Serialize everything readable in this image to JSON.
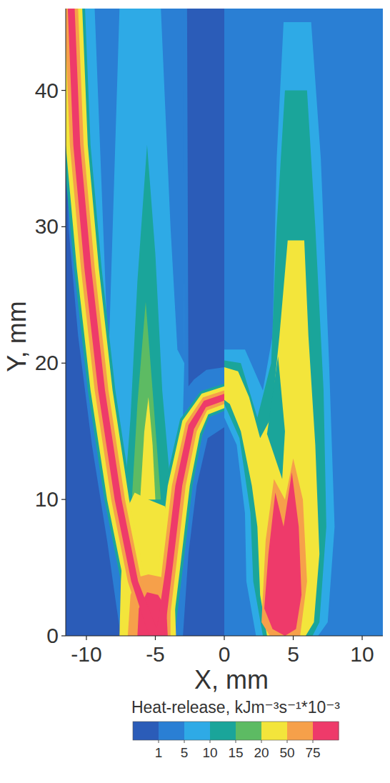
{
  "chart_data": {
    "type": "contour",
    "xlabel": "X, mm",
    "ylabel": "Y, mm",
    "xlim": [
      -11.5,
      11.5
    ],
    "ylim": [
      0,
      46
    ],
    "xticks": [
      -10,
      -5,
      0,
      5,
      10
    ],
    "yticks": [
      0,
      10,
      20,
      30,
      40
    ],
    "colorbar": {
      "title": "Heat-release, kJm⁻³s⁻¹*10⁻³",
      "ticks": [
        1,
        5,
        10,
        15,
        20,
        50,
        75
      ],
      "colors": [
        "#2b5cb8",
        "#2a7fd4",
        "#2eaae6",
        "#1aa59a",
        "#5dbb63",
        "#f3e53b",
        "#f6a04a",
        "#ee3a6a"
      ]
    },
    "regions": [
      {
        "level": 1,
        "x": [
          -11.5,
          -11.5,
          -11.3,
          -10.6,
          -9.6,
          -8.5,
          -7.8,
          -7.5,
          -3.0,
          -2.6,
          -2.0,
          -1.2,
          0,
          0,
          -1.3,
          -2.2,
          -2.6,
          -2.7
        ],
        "y": [
          46,
          40,
          30,
          22,
          14,
          7,
          2,
          0,
          0,
          6,
          11,
          14.5,
          15.3,
          19.7,
          19.5,
          18.8,
          18.3,
          46
        ]
      },
      {
        "level": 5,
        "x": [
          -10.9,
          -10.4,
          -9.6,
          -8.6,
          -7.8,
          -7.2,
          -4.0,
          -3.4,
          -3.0,
          -2.9,
          -3.1
        ],
        "y": [
          46,
          36,
          27,
          18,
          11,
          8,
          8,
          12,
          16,
          20,
          46
        ]
      },
      {
        "level": 1,
        "x": [
          -9.4,
          -8.4,
          -7.6
        ],
        "y": [
          46,
          20,
          46
        ]
      },
      {
        "level": 1,
        "x": [
          -4.6,
          -3.9,
          -3.4,
          -2.9,
          -3.0
        ],
        "y": [
          46,
          30,
          21,
          20,
          46
        ]
      },
      {
        "level": 10,
        "x": [
          -7.4,
          -6.8,
          -6.3,
          -5.6,
          -5.0,
          -4.5,
          -3.9,
          -3.6
        ],
        "y": [
          8,
          16,
          26,
          36,
          28,
          18,
          11,
          8
        ]
      },
      {
        "level": 10,
        "x": [
          -12.1,
          -11.7,
          -10.9,
          -9.9,
          -8.7,
          -7.5,
          -6.2,
          -3.6,
          -3.0,
          -2.3,
          -1.6,
          -1.1,
          0,
          0,
          -1.7,
          -3.2,
          -4.3,
          -5.0,
          -4.9,
          -5.5,
          -6.7,
          -7.9,
          -8.9,
          -9.7,
          -10.1
        ],
        "y": [
          46,
          36,
          27,
          18,
          10,
          4,
          0,
          0,
          5,
          11,
          14.7,
          16.05,
          16.5,
          18.5,
          17.95,
          15.9,
          11,
          5,
          2,
          4,
          10,
          18,
          27,
          36,
          46
        ]
      },
      {
        "level": 15,
        "x": [
          -6.7,
          -6.3,
          -5.7,
          -5.2,
          -4.6
        ],
        "y": [
          10,
          17,
          24.5,
          18,
          10
        ]
      },
      {
        "level": 20,
        "x": [
          -6.1,
          -5.8,
          -5.5,
          -5.2,
          -5.0
        ],
        "y": [
          10,
          15,
          17.5,
          14,
          10
        ]
      },
      {
        "level": 20,
        "x": [
          -7.6,
          -7.5,
          -7.2,
          -6.5,
          -5.5,
          -4.3,
          -3.7,
          -3.5
        ],
        "y": [
          0,
          4,
          9,
          10.5,
          10,
          9.5,
          6,
          0
        ]
      },
      {
        "level": 20,
        "x": [
          -11.9,
          -11.5,
          -10.7,
          -9.7,
          -8.5,
          -7.3,
          -6.0,
          -3.8,
          -3.2,
          -2.5,
          -1.76,
          -1.16,
          0,
          0,
          -1.64,
          -3.04,
          -4.1,
          -4.8,
          -4.9,
          -5.7,
          -6.9,
          -8.1,
          -9.1,
          -9.9,
          -10.3
        ],
        "y": [
          46,
          36,
          27,
          18,
          10,
          4,
          0,
          0,
          5,
          11,
          14.82,
          16.24,
          16.7,
          18.3,
          17.76,
          15.78,
          11,
          5,
          1.6,
          4,
          10,
          18,
          27,
          36,
          46
        ]
      },
      {
        "level": 50,
        "x": [
          -7.0,
          -6.8,
          -6.3,
          -5.5,
          -4.5,
          -3.9,
          -3.9
        ],
        "y": [
          0,
          3,
          4.3,
          4.5,
          4.3,
          3,
          0
        ]
      },
      {
        "level": 50,
        "x": [
          -11.6,
          -11.2,
          -10.4,
          -9.4,
          -8.2,
          -7.0,
          -5.7,
          -4.1,
          -3.5,
          -2.8,
          -2.0,
          -1.25,
          0,
          0,
          -1.55,
          -2.8,
          -3.8,
          -4.5,
          -4.9,
          -6.0,
          -7.2,
          -8.4,
          -9.4,
          -10.2,
          -10.6
        ],
        "y": [
          46,
          36,
          27,
          18,
          10,
          4,
          0,
          0,
          5,
          11,
          15.0,
          16.53,
          17.0,
          18.0,
          17.48,
          15.6,
          11,
          5,
          1.0,
          4,
          10,
          18,
          27,
          36,
          46
        ]
      },
      {
        "level": 75,
        "x": [
          -6.3,
          -6.2,
          -5.6,
          -4.8,
          -4.2,
          -4.1
        ],
        "y": [
          0,
          2,
          3.2,
          3.0,
          2,
          0
        ]
      },
      {
        "level": 75,
        "x": [
          -11.35,
          -10.95,
          -10.15,
          -9.15,
          -7.95,
          -6.75,
          -5.45,
          -4.35,
          -3.75,
          -3.05,
          -2.2,
          -1.33,
          0,
          0,
          -1.48,
          -2.6,
          -3.55,
          -4.25,
          -4.9,
          -6.25,
          -7.45,
          -8.65,
          -9.65,
          -10.45,
          -10.85
        ],
        "y": [
          46,
          36,
          27,
          18,
          10,
          4,
          0,
          0,
          5,
          11,
          15.15,
          16.76,
          17.25,
          17.75,
          17.24,
          15.45,
          11,
          5,
          0.5,
          4,
          10,
          18,
          27,
          36,
          46
        ]
      },
      {
        "level": 1,
        "x": [
          0,
          11.5,
          11.5,
          0
        ],
        "y": [
          0,
          0,
          46,
          46
        ]
      },
      {
        "level": 5,
        "x": [
          0,
          1.5,
          2.8,
          3.5,
          3.8,
          4.3,
          6.3,
          7.0,
          7.6,
          8.0,
          7.5,
          6.8,
          2.3,
          1.6,
          1.5,
          0.9,
          0
        ],
        "y": [
          21,
          21,
          18,
          22,
          35,
          45,
          45,
          35,
          20,
          8,
          1,
          0,
          0,
          4,
          9,
          14,
          16
        ]
      },
      {
        "level": 10,
        "x": [
          0,
          1.2,
          2.4,
          3.4,
          3.8,
          4.4,
          6.0,
          6.6,
          7.2,
          7.4,
          6.9,
          6.4,
          2.8,
          2.1,
          1.9,
          1.1,
          0
        ],
        "y": [
          20.2,
          20,
          16,
          20,
          30,
          40,
          40,
          30,
          18,
          8,
          1,
          0,
          0,
          4,
          9,
          14.5,
          17
        ]
      },
      {
        "level": 20,
        "x": [
          0,
          1.0,
          1.8,
          2.6,
          3.4,
          4.0,
          4.6,
          5.8,
          6.1,
          6.6,
          6.9,
          6.5,
          5.9,
          3.1,
          2.6,
          2.4,
          2.0,
          1.2,
          0.4,
          0
        ],
        "y": [
          19.7,
          19.4,
          17.5,
          14.5,
          16,
          22,
          29,
          29,
          22,
          14,
          6,
          1,
          0,
          0,
          3,
          8,
          11,
          15,
          17,
          17.3
        ]
      },
      {
        "level": 10,
        "x": [
          3.1,
          3.9,
          4.4,
          4.2
        ],
        "y": [
          14.8,
          20.5,
          15,
          11.5
        ]
      },
      {
        "level": 50,
        "x": [
          2.7,
          3.0,
          3.6,
          4.4,
          5.0,
          5.7,
          6.0,
          5.5,
          3.3
        ],
        "y": [
          1,
          7,
          11.5,
          10,
          13,
          10,
          4,
          0,
          0
        ]
      },
      {
        "level": 75,
        "x": [
          2.9,
          3.2,
          3.7,
          4.3,
          4.9,
          5.4,
          5.6,
          5.2,
          4.4,
          3.5
        ],
        "y": [
          2,
          6,
          10.5,
          8,
          12,
          8,
          3,
          0.5,
          0,
          0.5
        ]
      }
    ]
  }
}
